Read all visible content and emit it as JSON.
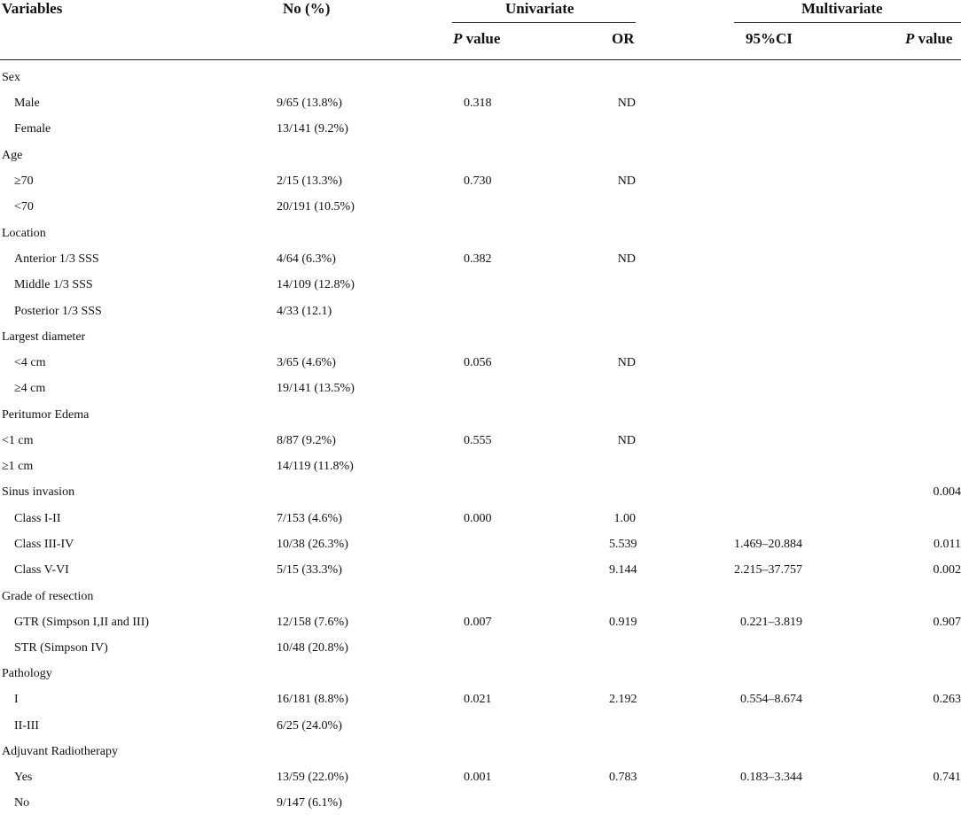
{
  "header": {
    "variables": "Variables",
    "no_pct": "No (%)",
    "univariate": "Univariate",
    "multivariate": "Multivariate",
    "p_value_italic": "P",
    "p_value_rest": " value",
    "or": "OR",
    "ci": "95%CI",
    "mp_italic": "P",
    "mp_rest": " value"
  },
  "rows": [
    {
      "variable": "Sex",
      "no": "",
      "p": "",
      "or": "",
      "ci": "",
      "mp": ""
    },
    {
      "variable": "Male",
      "no": "9/65 (13.8%)",
      "p": "0.318",
      "or": "ND",
      "ci": "",
      "mp": ""
    },
    {
      "variable": "Female",
      "no": "13/141 (9.2%)",
      "p": "",
      "or": "",
      "ci": "",
      "mp": ""
    },
    {
      "variable": "Age",
      "no": "",
      "p": "",
      "or": "",
      "ci": "",
      "mp": ""
    },
    {
      "variable": "≥70",
      "no": "2/15 (13.3%)",
      "p": "0.730",
      "or": "ND",
      "ci": "",
      "mp": ""
    },
    {
      "variable": "<70",
      "no": "20/191 (10.5%)",
      "p": "",
      "or": "",
      "ci": "",
      "mp": ""
    },
    {
      "variable": "Location",
      "no": "",
      "p": "",
      "or": "",
      "ci": "",
      "mp": ""
    },
    {
      "variable": "Anterior 1/3 SSS",
      "no": "4/64 (6.3%)",
      "p": "0.382",
      "or": "ND",
      "ci": "",
      "mp": ""
    },
    {
      "variable": "Middle 1/3 SSS",
      "no": "14/109 (12.8%)",
      "p": "",
      "or": "",
      "ci": "",
      "mp": ""
    },
    {
      "variable": "Posterior 1/3 SSS",
      "no": "4/33 (12.1)",
      "p": "",
      "or": "",
      "ci": "",
      "mp": ""
    },
    {
      "variable": "Largest diameter",
      "no": "",
      "p": "",
      "or": "",
      "ci": "",
      "mp": ""
    },
    {
      "variable": "<4 cm",
      "no": "3/65 (4.6%)",
      "p": "0.056",
      "or": "ND",
      "ci": "",
      "mp": ""
    },
    {
      "variable": "≥4 cm",
      "no": "19/141 (13.5%)",
      "p": "",
      "or": "",
      "ci": "",
      "mp": ""
    },
    {
      "variable": "Peritumor Edema",
      "no": "",
      "p": "",
      "or": "",
      "ci": "",
      "mp": ""
    },
    {
      "variable": "<1 cm",
      "no": "8/87 (9.2%)",
      "p": "0.555",
      "or": "ND",
      "ci": "",
      "mp": ""
    },
    {
      "variable": "≥1 cm",
      "no": "14/119 (11.8%)",
      "p": "",
      "or": "",
      "ci": "",
      "mp": ""
    },
    {
      "variable": "Sinus invasion",
      "no": "",
      "p": "",
      "or": "",
      "ci": "",
      "mp": "0.004"
    },
    {
      "variable": "Class I-II",
      "no": "7/153 (4.6%)",
      "p": "0.000",
      "or": "1.00",
      "ci": "",
      "mp": ""
    },
    {
      "variable": "Class III-IV",
      "no": "10/38 (26.3%)",
      "p": "",
      "or": "5.539",
      "ci": "1.469–20.884",
      "mp": "0.011"
    },
    {
      "variable": "Class V-VI",
      "no": "5/15 (33.3%)",
      "p": "",
      "or": "9.144",
      "ci": "2.215–37.757",
      "mp": "0.002"
    },
    {
      "variable": "Grade of resection",
      "no": "",
      "p": "",
      "or": "",
      "ci": "",
      "mp": ""
    },
    {
      "variable": "GTR (Simpson I,II and III)",
      "no": "12/158 (7.6%)",
      "p": "0.007",
      "or": "0.919",
      "ci": "0.221–3.819",
      "mp": "0.907"
    },
    {
      "variable": "STR (Simpson IV)",
      "no": "10/48 (20.8%)",
      "p": "",
      "or": "",
      "ci": "",
      "mp": ""
    },
    {
      "variable": "Pathology",
      "no": "",
      "p": "",
      "or": "",
      "ci": "",
      "mp": ""
    },
    {
      "variable": "I",
      "no": "16/181 (8.8%)",
      "p": "0.021",
      "or": "2.192",
      "ci": "0.554–8.674",
      "mp": "0.263"
    },
    {
      "variable": "II-III",
      "no": "6/25 (24.0%)",
      "p": "",
      "or": "",
      "ci": "",
      "mp": ""
    },
    {
      "variable": "Adjuvant Radiotherapy",
      "no": "",
      "p": "",
      "or": "",
      "ci": "",
      "mp": ""
    },
    {
      "variable": "Yes",
      "no": "13/59 (22.0%)",
      "p": "0.001",
      "or": "0.783",
      "ci": "0.183–3.344",
      "mp": "0.741"
    },
    {
      "variable": "No",
      "no": "9/147 (6.1%)",
      "p": "",
      "or": "",
      "ci": "",
      "mp": ""
    }
  ]
}
